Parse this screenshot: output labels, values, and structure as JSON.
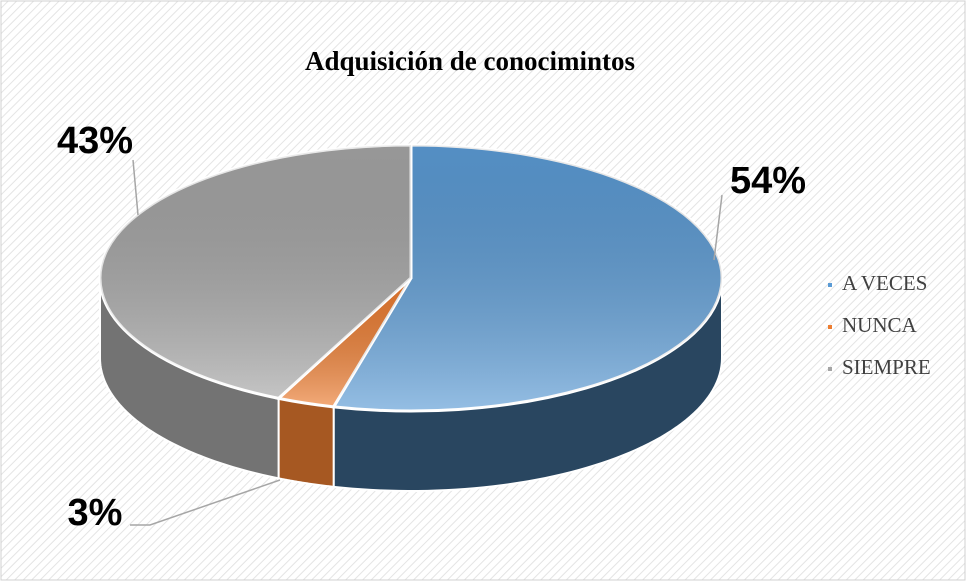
{
  "chart_data": {
    "type": "pie",
    "title": "Adquisición de conocimintos",
    "categories": [
      "A VECES",
      "NUNCA",
      "SIEMPRE"
    ],
    "values": [
      54,
      3,
      43
    ],
    "value_labels": [
      "54%",
      "3%",
      "43%"
    ],
    "colors": [
      "#5b9bd5",
      "#ed7d31",
      "#a5a5a5"
    ],
    "legend": "right"
  }
}
